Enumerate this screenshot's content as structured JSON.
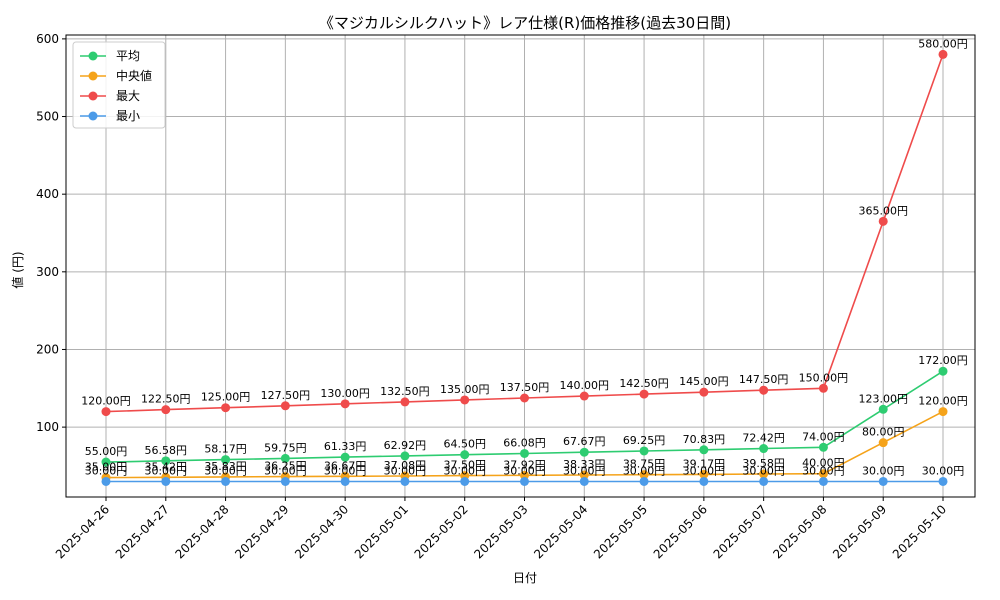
{
  "chart_data": {
    "type": "line",
    "title": "《マジカルシルクハット》レア仕様(R)価格推移(過去30日間)",
    "xlabel": "日付",
    "ylabel": "値 (円)",
    "ylim": [
      10,
      605
    ],
    "yticks": [
      100,
      200,
      300,
      400,
      500,
      600
    ],
    "grid": true,
    "legend_position": "top-left",
    "value_suffix": "円",
    "categories": [
      "2025-04-26",
      "2025-04-27",
      "2025-04-28",
      "2025-04-29",
      "2025-04-30",
      "2025-05-01",
      "2025-05-02",
      "2025-05-03",
      "2025-05-04",
      "2025-05-05",
      "2025-05-06",
      "2025-05-07",
      "2025-05-08",
      "2025-05-09",
      "2025-05-10"
    ],
    "series": [
      {
        "name": "平均",
        "color": "#2ecc71",
        "values": [
          55.0,
          56.58,
          58.17,
          59.75,
          61.33,
          62.92,
          64.5,
          66.08,
          67.67,
          69.25,
          70.83,
          72.42,
          74.0,
          123.0,
          172.0
        ]
      },
      {
        "name": "中央値",
        "color": "#f5a31a",
        "values": [
          35.0,
          35.42,
          35.83,
          36.25,
          36.67,
          37.08,
          37.5,
          37.92,
          38.33,
          38.75,
          39.17,
          39.58,
          40.0,
          80.0,
          120.0
        ]
      },
      {
        "name": "最大",
        "color": "#ef4b4b",
        "values": [
          120.0,
          122.5,
          125.0,
          127.5,
          130.0,
          132.5,
          135.0,
          137.5,
          140.0,
          142.5,
          145.0,
          147.5,
          150.0,
          365.0,
          580.0
        ]
      },
      {
        "name": "最小",
        "color": "#4c9be8",
        "values": [
          30.0,
          30.0,
          30.0,
          30.0,
          30.0,
          30.0,
          30.0,
          30.0,
          30.0,
          30.0,
          30.0,
          30.0,
          30.0,
          30.0,
          30.0
        ]
      }
    ]
  }
}
